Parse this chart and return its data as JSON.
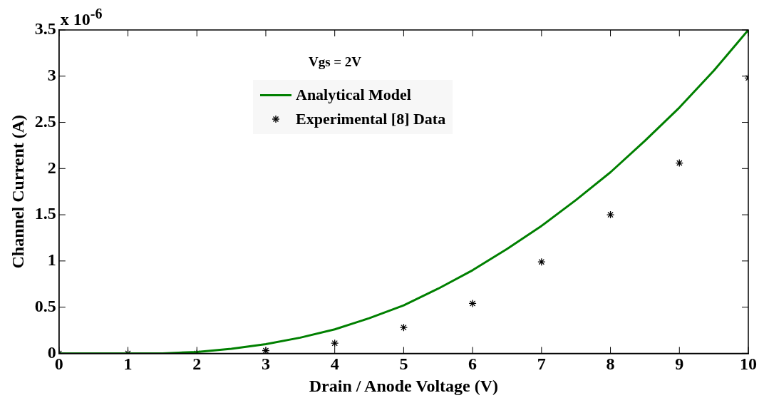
{
  "chart_data": {
    "type": "line",
    "xlabel": "Drain / Anode Voltage (V)",
    "ylabel": "Channel Current (A)",
    "annotations": [
      "x 10$^{-6}$",
      "Vgs = 2V"
    ],
    "xlim": [
      0,
      10
    ],
    "xticks": [
      0,
      1,
      2,
      3,
      4,
      5,
      6,
      7,
      8,
      9,
      10
    ],
    "ylim": [
      0,
      3.5
    ],
    "yticks": [
      0,
      0.5,
      1,
      1.5,
      2,
      2.5,
      3,
      3.5
    ],
    "grid": false,
    "legend": "top",
    "series": [
      {
        "name": "Analytical Model",
        "color": "#008000",
        "marker": "none",
        "line_style": "solid",
        "x": [
          0,
          0.5,
          1,
          1.5,
          2,
          2.5,
          3,
          3.5,
          4,
          4.5,
          5,
          5.5,
          6,
          6.5,
          7,
          7.5,
          8,
          8.5,
          9,
          9.5,
          10
        ],
        "values": [
          0,
          0,
          0,
          0,
          0.015,
          0.05,
          0.1,
          0.17,
          0.26,
          0.38,
          0.52,
          0.7,
          0.9,
          1.13,
          1.38,
          1.66,
          1.96,
          2.3,
          2.66,
          3.06,
          3.5
        ]
      },
      {
        "name": "Experimental [8] Data",
        "type": "scatter",
        "color": "#000000",
        "marker": "cross",
        "x": [
          0,
          1,
          2,
          3,
          4,
          5,
          6,
          7,
          8,
          9,
          10
        ],
        "values": [
          0,
          0,
          0,
          0.03,
          0.11,
          0.28,
          0.54,
          0.99,
          1.5,
          2.06,
          2.98
        ]
      }
    ]
  }
}
